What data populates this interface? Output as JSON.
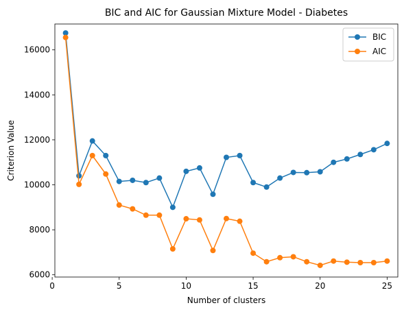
{
  "chart_data": {
    "type": "line",
    "title": "BIC and AIC for Gaussian Mixture Model - Diabetes",
    "xlabel": "Number of clusters",
    "ylabel": "Criterion Value",
    "x": [
      1,
      2,
      3,
      4,
      5,
      6,
      7,
      8,
      9,
      10,
      11,
      12,
      13,
      14,
      15,
      16,
      17,
      18,
      19,
      20,
      21,
      22,
      23,
      24,
      25
    ],
    "xlim": [
      0.2,
      25.8
    ],
    "ylim": [
      5900,
      17150
    ],
    "xticks": [
      0,
      5,
      10,
      15,
      20,
      25
    ],
    "yticks": [
      6000,
      8000,
      10000,
      12000,
      14000,
      16000
    ],
    "grid": false,
    "legend_position": "top-right",
    "series": [
      {
        "name": "BIC",
        "color": "#1f77b4",
        "values": [
          16750,
          10400,
          11950,
          11300,
          10150,
          10200,
          10100,
          10300,
          9000,
          10600,
          10750,
          9580,
          11220,
          11300,
          10100,
          9900,
          10300,
          10550,
          10540,
          10580,
          11000,
          11150,
          11350,
          11560,
          11840
        ]
      },
      {
        "name": "AIC",
        "color": "#ff7f0e",
        "values": [
          16550,
          10020,
          11300,
          10480,
          9100,
          8930,
          8650,
          8650,
          7150,
          8490,
          8440,
          7080,
          8500,
          8380,
          6960,
          6580,
          6760,
          6800,
          6580,
          6420,
          6610,
          6560,
          6540,
          6540,
          6610
        ]
      }
    ]
  }
}
